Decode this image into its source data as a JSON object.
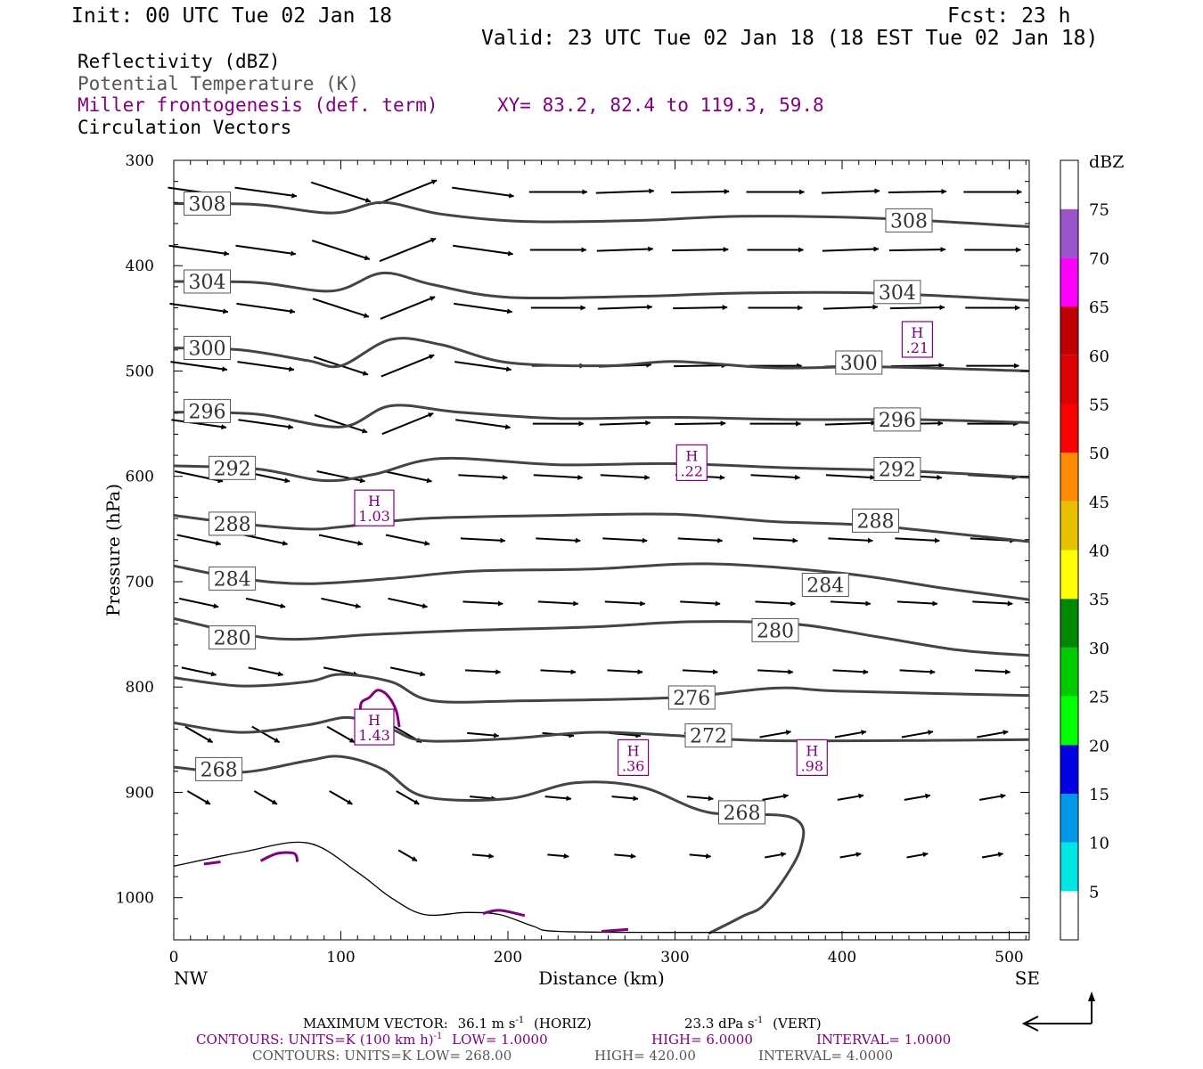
{
  "header": {
    "init": "Init: 00 UTC Tue 02 Jan 18",
    "fcst": "Fcst:   23 h",
    "valid": "Valid: 23 UTC Tue 02 Jan 18 (18 EST Tue 02 Jan 18)"
  },
  "fields": {
    "reflectivity": "Reflectivity (dBZ)",
    "theta": "Potential Temperature (K)",
    "miller": "Miller frontogenesis (def. term)",
    "xy": "XY=  83.2, 82.4 to 119.3, 59.8",
    "vectors": "Circulation Vectors"
  },
  "colors": {
    "theta": "#444444",
    "frontogenesis": "#800080",
    "vectors": "#000000"
  },
  "chart_data": {
    "type": "line",
    "title": "",
    "xlabel": "Distance (km)",
    "ylabel": "Pressure (hPa)",
    "xlim": [
      0,
      512
    ],
    "ylim": [
      300,
      1040
    ],
    "y_inverted": true,
    "x_ticks": [
      0,
      100,
      200,
      300,
      400,
      500
    ],
    "x_tick_labels": [
      "0",
      "100",
      "200",
      "300",
      "400",
      "500"
    ],
    "y_ticks": [
      300,
      400,
      500,
      600,
      700,
      800,
      900,
      1000
    ],
    "y_tick_labels": [
      "300",
      "400",
      "500",
      "600",
      "700",
      "800",
      "900",
      "1000"
    ],
    "left_end_label": "NW",
    "right_end_label": "SE",
    "theta_contours": [
      {
        "level": 308,
        "label": "308",
        "points": [
          [
            0,
            341
          ],
          [
            50,
            342
          ],
          [
            95,
            350
          ],
          [
            125,
            340
          ],
          [
            160,
            351
          ],
          [
            210,
            358
          ],
          [
            280,
            357
          ],
          [
            340,
            353
          ],
          [
            420,
            355
          ],
          [
            512,
            363
          ]
        ]
      },
      {
        "level": 304,
        "label": "304",
        "points": [
          [
            0,
            415
          ],
          [
            50,
            416
          ],
          [
            95,
            424
          ],
          [
            125,
            407
          ],
          [
            155,
            418
          ],
          [
            200,
            430
          ],
          [
            280,
            429
          ],
          [
            340,
            426
          ],
          [
            420,
            426
          ],
          [
            512,
            433
          ]
        ]
      },
      {
        "level": 300,
        "label": "300",
        "points": [
          [
            0,
            478
          ],
          [
            40,
            480
          ],
          [
            80,
            490
          ],
          [
            100,
            495
          ],
          [
            130,
            470
          ],
          [
            160,
            475
          ],
          [
            200,
            492
          ],
          [
            260,
            495
          ],
          [
            300,
            491
          ],
          [
            360,
            497
          ],
          [
            420,
            496
          ],
          [
            512,
            500
          ]
        ]
      },
      {
        "level": 296,
        "label": "296",
        "points": [
          [
            0,
            539
          ],
          [
            50,
            541
          ],
          [
            100,
            553
          ],
          [
            130,
            533
          ],
          [
            170,
            539
          ],
          [
            230,
            545
          ],
          [
            300,
            544
          ],
          [
            370,
            546
          ],
          [
            440,
            546
          ],
          [
            512,
            549
          ]
        ]
      },
      {
        "level": 292,
        "label": "292",
        "points": [
          [
            0,
            590
          ],
          [
            50,
            593
          ],
          [
            90,
            604
          ],
          [
            120,
            598
          ],
          [
            160,
            583
          ],
          [
            230,
            589
          ],
          [
            300,
            588
          ],
          [
            370,
            592
          ],
          [
            440,
            595
          ],
          [
            512,
            601
          ]
        ]
      },
      {
        "level": 288,
        "label": "288",
        "points": [
          [
            0,
            637
          ],
          [
            40,
            645
          ],
          [
            80,
            650
          ],
          [
            100,
            648
          ],
          [
            150,
            640
          ],
          [
            230,
            637
          ],
          [
            300,
            636
          ],
          [
            360,
            643
          ],
          [
            420,
            647
          ],
          [
            512,
            662
          ]
        ]
      },
      {
        "level": 284,
        "label": "284",
        "points": [
          [
            0,
            685
          ],
          [
            40,
            697
          ],
          [
            80,
            702
          ],
          [
            130,
            697
          ],
          [
            180,
            690
          ],
          [
            250,
            688
          ],
          [
            320,
            683
          ],
          [
            400,
            692
          ],
          [
            460,
            706
          ],
          [
            512,
            717
          ]
        ]
      },
      {
        "level": 280,
        "label": "280",
        "points": [
          [
            0,
            735
          ],
          [
            60,
            754
          ],
          [
            120,
            750
          ],
          [
            180,
            746
          ],
          [
            250,
            743
          ],
          [
            310,
            738
          ],
          [
            370,
            740
          ],
          [
            420,
            752
          ],
          [
            470,
            765
          ],
          [
            512,
            770
          ]
        ]
      },
      {
        "level": 276,
        "label": "276",
        "points": [
          [
            0,
            791
          ],
          [
            40,
            799
          ],
          [
            80,
            795
          ],
          [
            100,
            788
          ],
          [
            130,
            795
          ],
          [
            155,
            813
          ],
          [
            210,
            813
          ],
          [
            300,
            810
          ],
          [
            360,
            801
          ],
          [
            400,
            804
          ],
          [
            512,
            808
          ]
        ]
      },
      {
        "level": 272,
        "label": "272",
        "points": [
          [
            0,
            834
          ],
          [
            40,
            843
          ],
          [
            80,
            836
          ],
          [
            105,
            829
          ],
          [
            130,
            840
          ],
          [
            150,
            851
          ],
          [
            200,
            849
          ],
          [
            250,
            843
          ],
          [
            300,
            846
          ],
          [
            360,
            851
          ],
          [
            512,
            850
          ]
        ]
      },
      {
        "level": 268,
        "label": "268",
        "points": [
          [
            0,
            876
          ],
          [
            40,
            881
          ],
          [
            80,
            870
          ],
          [
            100,
            866
          ],
          [
            125,
            878
          ],
          [
            150,
            904
          ],
          [
            200,
            906
          ],
          [
            240,
            891
          ],
          [
            280,
            895
          ],
          [
            320,
            919
          ],
          [
            370,
            924
          ],
          [
            375,
            954
          ],
          [
            355,
            1004
          ],
          [
            340,
            1018
          ],
          [
            320,
            1034
          ]
        ]
      }
    ],
    "terrain": {
      "points": [
        [
          0,
          970
        ],
        [
          40,
          957
        ],
        [
          80,
          948
        ],
        [
          110,
          976
        ],
        [
          130,
          1000
        ],
        [
          150,
          1016
        ],
        [
          175,
          1014
        ],
        [
          195,
          1016
        ],
        [
          215,
          1027
        ],
        [
          230,
          1032
        ],
        [
          300,
          1033
        ],
        [
          400,
          1033
        ],
        [
          512,
          1033
        ]
      ]
    },
    "frontogenesis_maxima": [
      {
        "label": "H",
        "value": "1.03",
        "x": 120,
        "p": 630
      },
      {
        "label": "H",
        "value": "1.43",
        "x": 120,
        "p": 838
      },
      {
        "label": "H",
        "value": ".22",
        "x": 310,
        "p": 587
      },
      {
        "label": "H",
        "value": ".21",
        "x": 445,
        "p": 470
      },
      {
        "label": "H",
        "value": ".36",
        "x": 275,
        "p": 867
      },
      {
        "label": "H",
        "value": ".98",
        "x": 382,
        "p": 867
      }
    ],
    "frontogenesis_contours": [
      {
        "points": [
          [
            112,
            836
          ],
          [
            112,
            816
          ],
          [
            117,
            810
          ],
          [
            122,
            803
          ],
          [
            128,
            808
          ],
          [
            133,
            822
          ],
          [
            135,
            838
          ]
        ]
      },
      {
        "points": [
          [
            52,
            965
          ],
          [
            62,
            958
          ],
          [
            72,
            958
          ],
          [
            74,
            966
          ]
        ]
      },
      {
        "points": [
          [
            18,
            968
          ],
          [
            28,
            966
          ]
        ]
      },
      {
        "points": [
          [
            185,
            1015
          ],
          [
            195,
            1012
          ],
          [
            210,
            1017
          ]
        ]
      },
      {
        "points": [
          [
            256,
            1032
          ],
          [
            272,
            1030
          ]
        ]
      }
    ],
    "colorbar": {
      "unit": "dBZ",
      "tick_labels": [
        "5",
        "10",
        "15",
        "20",
        "25",
        "30",
        "35",
        "40",
        "45",
        "50",
        "55",
        "60",
        "65",
        "70",
        "75"
      ],
      "colors": [
        "#ffffff",
        "#00e5e5",
        "#0099e8",
        "#0000e0",
        "#00ff00",
        "#00cc00",
        "#008800",
        "#ffff00",
        "#e8c000",
        "#ff8c00",
        "#ff0000",
        "#dd0000",
        "#c00000",
        "#ff00ff",
        "#9955c9",
        "#ffffff"
      ]
    }
  },
  "footer": {
    "max_vector_label": "MAXIMUM VECTOR:",
    "max_vector_horiz": "36.1 m s",
    "max_vector_horiz_exp": "-1",
    "max_vector_horiz_tag": "(HORIZ)",
    "max_vector_vert": "23.3 dPa s",
    "max_vector_vert_exp": "-1",
    "max_vector_vert_tag": "(VERT)",
    "contours_purple_a": "CONTOURS:  UNITS=K (100 km h)",
    "contours_purple_exp": "-1",
    "contours_purple_b": "LOW=   1.0000",
    "contours_purple_high": "HIGH=   6.0000",
    "contours_purple_interval": "INTERVAL=    1.0000",
    "contours_grey_a": "CONTOURS:  UNITS=K  LOW=   268.00",
    "contours_grey_high": "HIGH=   420.00",
    "contours_grey_interval": "INTERVAL=    4.0000"
  }
}
